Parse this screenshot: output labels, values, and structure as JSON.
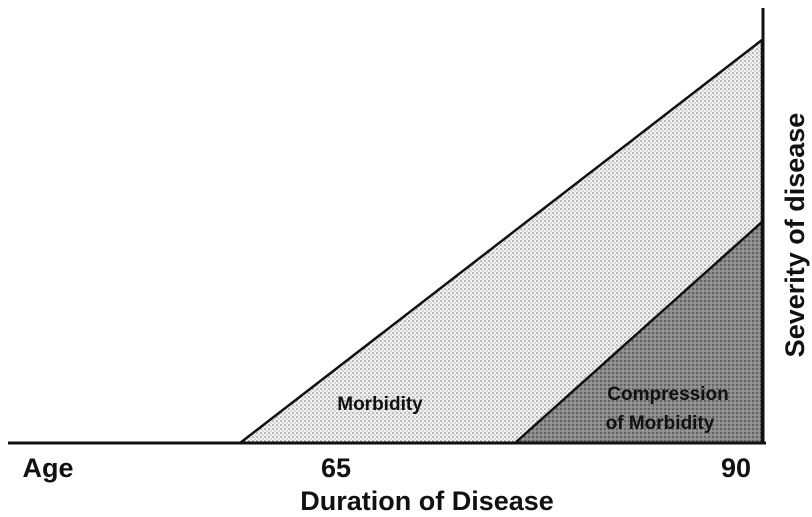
{
  "diagram": {
    "regions": [
      {
        "label": "Morbidity"
      },
      {
        "label_lines": [
          "Compression",
          "of Morbidity"
        ]
      }
    ],
    "x_labels": [
      "Age",
      "65",
      "90"
    ],
    "x_axis_title": "Duration of Disease",
    "y_axis_title": "Severity of disease"
  }
}
